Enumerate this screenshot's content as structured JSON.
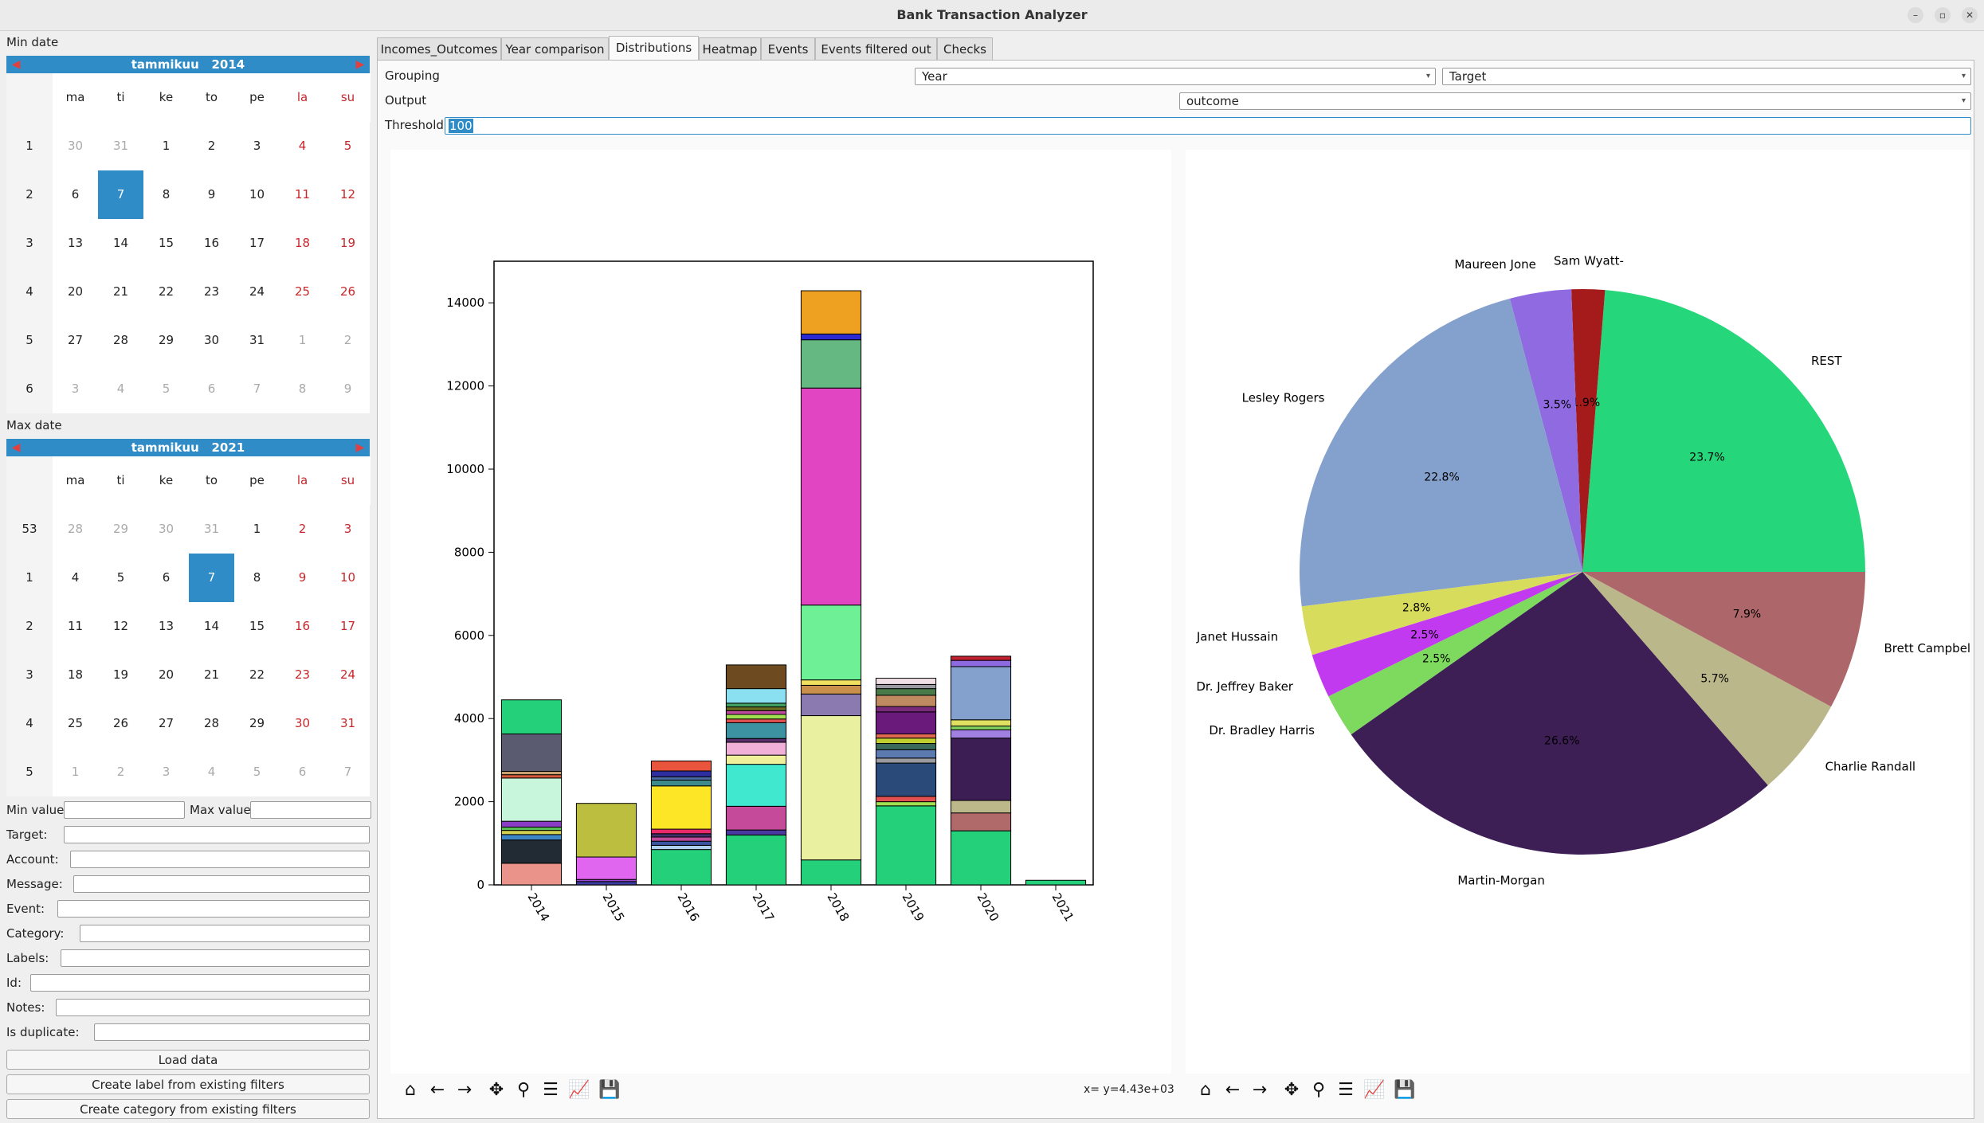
{
  "window": {
    "title": "Bank Transaction Analyzer",
    "min_glyph": "–",
    "max_glyph": "▫",
    "close_glyph": "✕"
  },
  "left": {
    "min_date_label": "Min date",
    "max_date_label": "Max date",
    "cal_min": {
      "month": "tammikuu",
      "year": "2014",
      "prev": "◀",
      "next": "▶",
      "headers": [
        "ma",
        "ti",
        "ke",
        "to",
        "pe",
        "la",
        "su"
      ],
      "weeks": [
        {
          "wk": "1",
          "days": [
            "30",
            "31",
            "1",
            "2",
            "3",
            "4",
            "5"
          ],
          "muted": [
            0,
            1
          ]
        },
        {
          "wk": "2",
          "days": [
            "6",
            "7",
            "8",
            "9",
            "10",
            "11",
            "12"
          ],
          "selected": 1
        },
        {
          "wk": "3",
          "days": [
            "13",
            "14",
            "15",
            "16",
            "17",
            "18",
            "19"
          ]
        },
        {
          "wk": "4",
          "days": [
            "20",
            "21",
            "22",
            "23",
            "24",
            "25",
            "26"
          ]
        },
        {
          "wk": "5",
          "days": [
            "27",
            "28",
            "29",
            "30",
            "31",
            "1",
            "2"
          ],
          "muted": [
            5,
            6
          ]
        },
        {
          "wk": "6",
          "days": [
            "3",
            "4",
            "5",
            "6",
            "7",
            "8",
            "9"
          ],
          "muted": [
            0,
            1,
            2,
            3,
            4,
            5,
            6
          ]
        }
      ]
    },
    "cal_max": {
      "month": "tammikuu",
      "year": "2021",
      "prev": "◀",
      "next": "▶",
      "headers": [
        "ma",
        "ti",
        "ke",
        "to",
        "pe",
        "la",
        "su"
      ],
      "weeks": [
        {
          "wk": "53",
          "days": [
            "28",
            "29",
            "30",
            "31",
            "1",
            "2",
            "3"
          ],
          "muted": [
            0,
            1,
            2,
            3
          ]
        },
        {
          "wk": "1",
          "days": [
            "4",
            "5",
            "6",
            "7",
            "8",
            "9",
            "10"
          ],
          "selected": 3
        },
        {
          "wk": "2",
          "days": [
            "11",
            "12",
            "13",
            "14",
            "15",
            "16",
            "17"
          ]
        },
        {
          "wk": "3",
          "days": [
            "18",
            "19",
            "20",
            "21",
            "22",
            "23",
            "24"
          ]
        },
        {
          "wk": "4",
          "days": [
            "25",
            "26",
            "27",
            "28",
            "29",
            "30",
            "31"
          ]
        },
        {
          "wk": "5",
          "days": [
            "1",
            "2",
            "3",
            "4",
            "5",
            "6",
            "7"
          ],
          "muted": [
            0,
            1,
            2,
            3,
            4,
            5,
            6
          ]
        }
      ]
    },
    "min_value_label": "Min value",
    "max_value_label": "Max value",
    "filters": [
      {
        "label": "Target:",
        "name": "target-field"
      },
      {
        "label": "Account:",
        "name": "account-field"
      },
      {
        "label": "Message:",
        "name": "message-field"
      },
      {
        "label": "Event:",
        "name": "event-field"
      },
      {
        "label": "Category:",
        "name": "category-field"
      },
      {
        "label": "Labels:",
        "name": "labels-field"
      },
      {
        "label": "Id:",
        "name": "id-field"
      },
      {
        "label": "Notes:",
        "name": "notes-field"
      },
      {
        "label": "Is duplicate:",
        "name": "is-duplicate-field"
      }
    ],
    "load_button": "Load data",
    "create_label_button": "Create label from existing filters",
    "create_category_button": "Create category from existing filters"
  },
  "tabs": [
    "Incomes_Outcomes",
    "Year comparison",
    "Distributions",
    "Heatmap",
    "Events",
    "Events filtered out",
    "Checks"
  ],
  "active_tab": 2,
  "controls": {
    "grouping_label": "Grouping",
    "grouping_value": "Year",
    "target_value": "Target",
    "output_label": "Output",
    "output_value": "outcome",
    "threshold_label": "Threshold",
    "threshold_value": "100"
  },
  "toolbar_icons": [
    "home-icon",
    "back-icon",
    "forward-icon",
    "pan-icon",
    "zoom-icon",
    "configure-icon",
    "edit-axes-icon",
    "save-icon"
  ],
  "toolbar_glyphs": [
    "⌂",
    "←",
    "→",
    "✥",
    "⚲",
    "☰",
    "📈",
    "💾"
  ],
  "coord_readout": "x= y=4.43e+03",
  "chart_data": [
    {
      "type": "bar",
      "stacked": true,
      "categories": [
        "2014",
        "2015",
        "2016",
        "2017",
        "2018",
        "2019",
        "2020",
        "2021"
      ],
      "ylim": [
        0,
        15000
      ],
      "yticks": [
        "0",
        "2000",
        "4000",
        "6000",
        "8000",
        "10000",
        "12000",
        "14000"
      ],
      "stacks": [
        [
          [
            520,
            "#e9938a"
          ],
          [
            560,
            "#222a33"
          ],
          [
            130,
            "#3c86c6"
          ],
          [
            100,
            "#d0d050"
          ],
          [
            80,
            "#55bb55"
          ],
          [
            140,
            "#8a3cc6"
          ],
          [
            1040,
            "#c8f6dc"
          ],
          [
            80,
            "#d65a3c"
          ],
          [
            80,
            "#c8a070"
          ],
          [
            900,
            "#5a5a70"
          ],
          [
            820,
            "#25d07a"
          ]
        ],
        [
          [
            80,
            "#3a3aa0"
          ],
          [
            50,
            "#9a4ad0"
          ],
          [
            540,
            "#e066f0"
          ],
          [
            1290,
            "#bcbe40"
          ]
        ],
        [
          [
            850,
            "#25d07a"
          ],
          [
            100,
            "#b0d0f0"
          ],
          [
            100,
            "#3a55a0"
          ],
          [
            100,
            "#c04a9a"
          ],
          [
            80,
            "#40306a"
          ],
          [
            110,
            "#e82a6a"
          ],
          [
            1040,
            "#fce625"
          ],
          [
            140,
            "#3c8a8a"
          ],
          [
            80,
            "#4a6aa0"
          ],
          [
            140,
            "#2e2ea0"
          ],
          [
            240,
            "#e9553c"
          ]
        ],
        [
          [
            1200,
            "#25d07a"
          ],
          [
            120,
            "#4a3aa0"
          ],
          [
            570,
            "#c54a9a"
          ],
          [
            1010,
            "#40e8d0"
          ],
          [
            220,
            "#f0f09a"
          ],
          [
            310,
            "#f0b0d8"
          ],
          [
            90,
            "#5a2e6a"
          ],
          [
            380,
            "#3c92a0"
          ],
          [
            90,
            "#e05050"
          ],
          [
            110,
            "#a0e050"
          ],
          [
            90,
            "#c04aa0"
          ],
          [
            90,
            "#6a6a20"
          ],
          [
            90,
            "#40a060"
          ],
          [
            350,
            "#8ae0f0"
          ],
          [
            570,
            "#6e4a20"
          ]
        ],
        [
          [
            600,
            "#25d07a"
          ],
          [
            3470,
            "#e9f0a0"
          ],
          [
            520,
            "#8a7ab0"
          ],
          [
            210,
            "#c8904a"
          ],
          [
            130,
            "#f0e060"
          ],
          [
            1800,
            "#6ef096"
          ],
          [
            5220,
            "#e245c2"
          ],
          [
            1160,
            "#66b882"
          ],
          [
            140,
            "#2a2ad0"
          ],
          [
            1040,
            "#eea020"
          ]
        ],
        [
          [
            1900,
            "#25d07a"
          ],
          [
            100,
            "#a0e050"
          ],
          [
            130,
            "#e05050"
          ],
          [
            800,
            "#2a4a7a"
          ],
          [
            120,
            "#9a9aa0"
          ],
          [
            200,
            "#5a7ab0"
          ],
          [
            150,
            "#3a6a5a"
          ],
          [
            130,
            "#c0d030"
          ],
          [
            100,
            "#e06a50"
          ],
          [
            530,
            "#6a1a7a"
          ],
          [
            130,
            "#7a2a7a"
          ],
          [
            270,
            "#c08a60"
          ],
          [
            160,
            "#4a7a4a"
          ],
          [
            100,
            "#9a9aa0"
          ],
          [
            150,
            "#f0e0e6"
          ]
        ],
        [
          [
            1300,
            "#25d07a"
          ],
          [
            430,
            "#b06a6a"
          ],
          [
            300,
            "#bdb88a"
          ],
          [
            1500,
            "#3c1e55"
          ],
          [
            200,
            "#a080e0"
          ],
          [
            90,
            "#80d060"
          ],
          [
            150,
            "#e0e060"
          ],
          [
            1280,
            "#84a0cc"
          ],
          [
            150,
            "#8e6ae0"
          ],
          [
            100,
            "#c02030"
          ]
        ],
        [
          [
            110,
            "#25d07a"
          ]
        ]
      ]
    },
    {
      "type": "pie",
      "slices": [
        {
          "label": "REST",
          "value": 23.7,
          "pct": "23.7%",
          "color": "#25d67a"
        },
        {
          "label": "Sam Wyatt-",
          "value": 1.9,
          "pct": "1.9%",
          "color": "#a51a1a"
        },
        {
          "label": "Maureen Jone",
          "value": 3.5,
          "pct": "3.5%",
          "color": "#8f6ae0"
        },
        {
          "label": "Lesley Rogers",
          "value": 22.8,
          "pct": "22.8%",
          "color": "#84a0cc"
        },
        {
          "label": "Janet Hussain",
          "value": 2.8,
          "pct": "2.8%",
          "color": "#d8dc5c"
        },
        {
          "label": "Dr. Jeffrey Baker",
          "value": 2.5,
          "pct": "2.5%",
          "color": "#c13af0"
        },
        {
          "label": "Dr. Bradley Harris",
          "value": 2.5,
          "pct": "2.5%",
          "color": "#7dda5e"
        },
        {
          "label": "Martin-Morgan",
          "value": 26.6,
          "pct": "26.6%",
          "color": "#3d1e55"
        },
        {
          "label": "Charlie Randall",
          "value": 5.7,
          "pct": "5.7%",
          "color": "#bab78a"
        },
        {
          "label": "Brett Campbell",
          "value": 7.9,
          "pct": "7.9%",
          "color": "#ad666a"
        }
      ]
    }
  ]
}
